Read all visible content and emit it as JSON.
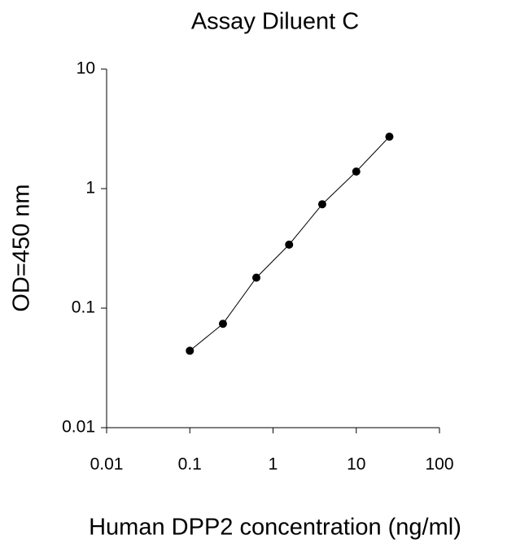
{
  "chart_data": {
    "type": "scatter",
    "title": "Assay Diluent C",
    "x_label": "Human DPP2 concentration (ng/ml)",
    "y_label": "OD=450 nm",
    "x": [
      0.1,
      0.25,
      0.63,
      1.56,
      3.9,
      10,
      25
    ],
    "series": [
      {
        "color": "#000000",
        "values": [
          0.044,
          0.074,
          0.18,
          0.34,
          0.74,
          1.39,
          2.72
        ]
      }
    ],
    "xlim": [
      0.01,
      100
    ],
    "ylim": [
      0.01,
      10
    ],
    "xticks": [
      0.01,
      0.1,
      1,
      10,
      100
    ],
    "yticks": [
      0.01,
      0.1,
      1,
      10
    ],
    "xscale": "log",
    "yscale": "log",
    "grid": false,
    "fit_line": true
  }
}
